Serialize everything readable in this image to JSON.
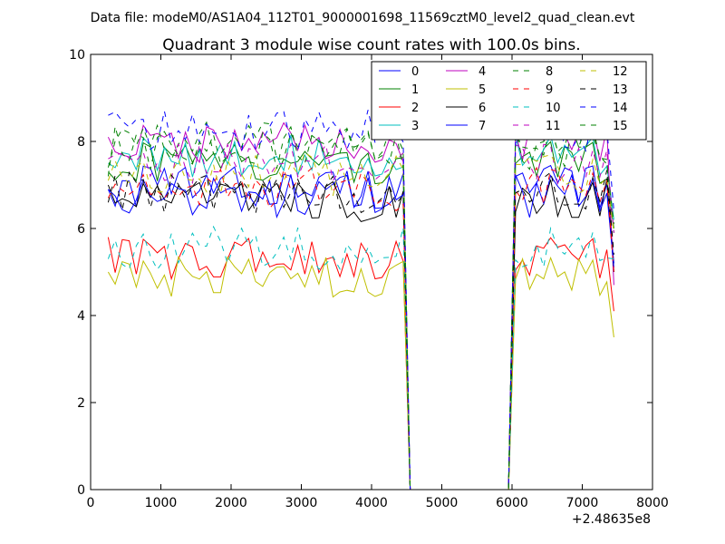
{
  "figure": {
    "suptitle": "Data file: modeM0/AS1A04_112T01_9000001698_11569cztM0_level2_quad_clean.evt"
  },
  "chart_data": {
    "type": "line",
    "title": "Quadrant 3 module wise count rates with 100.0s bins.",
    "xlabel": "",
    "ylabel": "",
    "x_offset_label": "+2.48635e8",
    "xlim": [
      0,
      8000
    ],
    "ylim": [
      0,
      10
    ],
    "x_ticks": [
      0,
      1000,
      2000,
      3000,
      4000,
      5000,
      6000,
      7000,
      8000
    ],
    "y_ticks": [
      0,
      2,
      4,
      6,
      8,
      10
    ],
    "grid": false,
    "legend_placement": "top-right",
    "x": [
      250,
      350,
      450,
      550,
      650,
      750,
      850,
      950,
      1050,
      1150,
      1250,
      1350,
      1450,
      1550,
      1650,
      1750,
      1850,
      1950,
      2050,
      2150,
      2250,
      2350,
      2450,
      2550,
      2650,
      2750,
      2850,
      2950,
      3050,
      3150,
      3250,
      3350,
      3450,
      3550,
      3650,
      3750,
      3850,
      3950,
      4050,
      4150,
      4250,
      4350,
      4450,
      4550,
      4650,
      4750,
      4850,
      4950,
      5050,
      5150,
      5250,
      5350,
      5450,
      5550,
      5650,
      5750,
      5850,
      5950,
      6050,
      6150,
      6250,
      6350,
      6450,
      6550,
      6650,
      6750,
      6850,
      6950,
      7050,
      7150,
      7250,
      7350,
      7450
    ],
    "gap_x_range": [
      4550,
      5950
    ],
    "series": [
      {
        "name": "0",
        "color": "#0000ff",
        "dash": "solid",
        "level": 6.95,
        "left_edge": 6.9,
        "right_end": 5.2
      },
      {
        "name": "1",
        "color": "#008000",
        "dash": "solid",
        "level": 7.5,
        "left_edge": 7.3,
        "right_end": 6.0
      },
      {
        "name": "2",
        "color": "#ff0000",
        "dash": "solid",
        "level": 5.3,
        "left_edge": 5.8,
        "right_end": 4.1
      },
      {
        "name": "3",
        "color": "#00bfbf",
        "dash": "solid",
        "level": 7.65,
        "left_edge": 7.5,
        "right_end": 6.2
      },
      {
        "name": "4",
        "color": "#bf00bf",
        "dash": "solid",
        "level": 7.95,
        "left_edge": 8.1,
        "right_end": 4.7
      },
      {
        "name": "5",
        "color": "#bfbf00",
        "dash": "solid",
        "level": 4.85,
        "left_edge": 5.0,
        "right_end": 3.5
      },
      {
        "name": "6",
        "color": "#000000",
        "dash": "solid",
        "level": 6.65,
        "left_edge": 7.0,
        "right_end": 5.0
      },
      {
        "name": "7",
        "color": "#0000ff",
        "dash": "solid",
        "level": 6.75,
        "left_edge": 6.9,
        "right_end": 5.1
      },
      {
        "name": "8",
        "color": "#008000",
        "dash": "dashed",
        "level": 7.95,
        "left_edge": 7.4,
        "right_end": 5.9
      },
      {
        "name": "9",
        "color": "#ff0000",
        "dash": "dashed",
        "level": 6.9,
        "left_edge": 6.7,
        "right_end": 5.0
      },
      {
        "name": "10",
        "color": "#00bfbf",
        "dash": "dashed",
        "level": 5.55,
        "left_edge": 5.3,
        "right_end": 5.3
      },
      {
        "name": "11",
        "color": "#bf00bf",
        "dash": "dashed",
        "level": 7.45,
        "left_edge": 7.6,
        "right_end": 5.9
      },
      {
        "name": "12",
        "color": "#bfbf00",
        "dash": "dashed",
        "level": 7.25,
        "left_edge": 7.1,
        "right_end": 5.9
      },
      {
        "name": "13",
        "color": "#000000",
        "dash": "dashed",
        "level": 6.85,
        "left_edge": 6.6,
        "right_end": 5.4
      },
      {
        "name": "14",
        "color": "#0000ff",
        "dash": "dashed",
        "level": 8.25,
        "left_edge": 8.6,
        "right_end": 6.4
      },
      {
        "name": "15",
        "color": "#008000",
        "dash": "dashed",
        "level": 7.85,
        "left_edge": 7.2,
        "right_end": 6.1
      }
    ]
  }
}
